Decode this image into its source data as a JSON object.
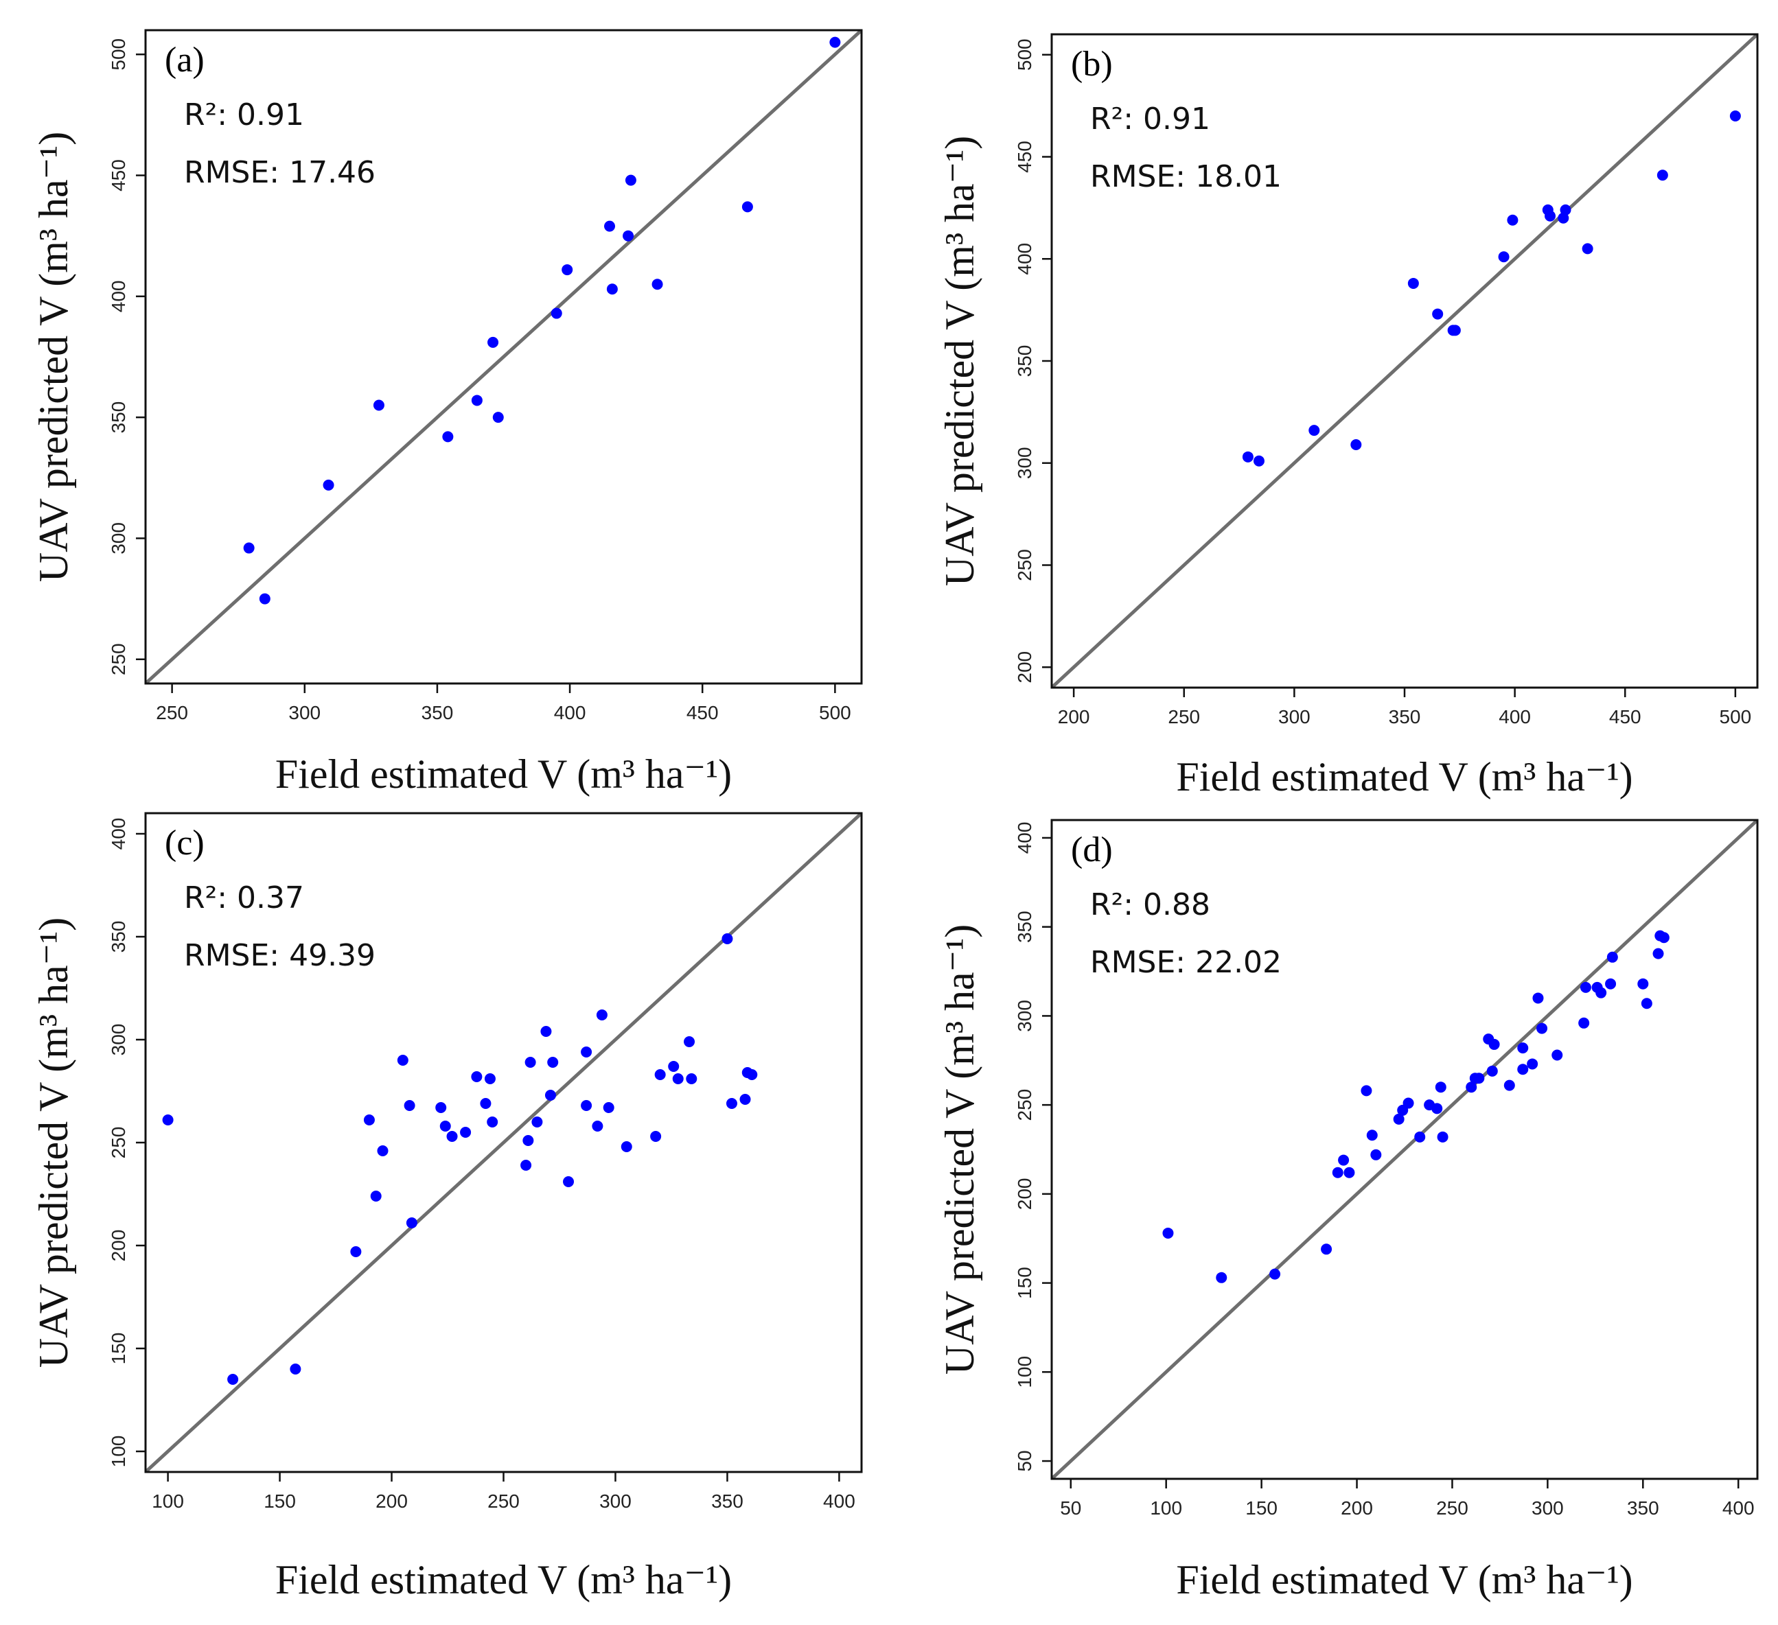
{
  "colors": {
    "points": "#0000ff",
    "reference_line": "#6e6e6e",
    "frame": "#111111"
  },
  "chart_data": [
    {
      "type": "scatter",
      "panel_label": "a",
      "xlabel": "Field estimated V (m³ ha⁻¹)",
      "ylabel": "UAV predicted V (m³ ha⁻¹)",
      "xlim": [
        240,
        510
      ],
      "ylim": [
        240,
        510
      ],
      "xticks": [
        250,
        300,
        350,
        400,
        450,
        500
      ],
      "yticks": [
        250,
        300,
        350,
        400,
        450,
        500
      ],
      "r2_label": "R²: 0.91",
      "rmse_label": "RMSE: 17.46",
      "reference_line": "1:1",
      "x": [
        279,
        285,
        309,
        328,
        354,
        365,
        371,
        373,
        395,
        399,
        415,
        416,
        422,
        423,
        433,
        467,
        500
      ],
      "y": [
        296,
        275,
        322,
        355,
        342,
        357,
        381,
        350,
        393,
        411,
        429,
        403,
        425,
        448,
        405,
        437,
        505
      ]
    },
    {
      "type": "scatter",
      "panel_label": "b",
      "xlabel": "Field estimated V (m³ ha⁻¹)",
      "ylabel": "UAV predicted V (m³ ha⁻¹)",
      "xlim": [
        190,
        510
      ],
      "ylim": [
        190,
        510
      ],
      "xticks": [
        200,
        250,
        300,
        350,
        400,
        450,
        500
      ],
      "yticks": [
        200,
        250,
        300,
        350,
        400,
        450,
        500
      ],
      "r2_label": "R²: 0.91",
      "rmse_label": "RMSE: 18.01",
      "reference_line": "1:1",
      "x": [
        279,
        284,
        309,
        328,
        354,
        365,
        372,
        373,
        395,
        399,
        415,
        416,
        422,
        423,
        433,
        467,
        500
      ],
      "y": [
        303,
        301,
        316,
        309,
        388,
        373,
        365,
        365,
        401,
        419,
        424,
        421,
        420,
        424,
        405,
        441,
        470
      ]
    },
    {
      "type": "scatter",
      "panel_label": "c",
      "xlabel": "Field estimated V (m³ ha⁻¹)",
      "ylabel": "UAV predicted V (m³ ha⁻¹)",
      "xlim": [
        90,
        410
      ],
      "ylim": [
        90,
        410
      ],
      "xticks": [
        100,
        150,
        200,
        250,
        300,
        350,
        400
      ],
      "yticks": [
        100,
        150,
        200,
        250,
        300,
        350,
        400
      ],
      "r2_label": "R²: 0.37",
      "rmse_label": "RMSE: 49.39",
      "reference_line": "1:1",
      "x": [
        100,
        129,
        157,
        184,
        190,
        193,
        196,
        205,
        208,
        209,
        222,
        224,
        227,
        233,
        238,
        242,
        244,
        245,
        260,
        261,
        262,
        265,
        269,
        271,
        272,
        279,
        287,
        287,
        292,
        294,
        297,
        305,
        318,
        320,
        326,
        328,
        333,
        334,
        350,
        352,
        358,
        359,
        361
      ],
      "y": [
        261,
        135,
        140,
        197,
        261,
        224,
        246,
        290,
        268,
        211,
        267,
        258,
        253,
        255,
        282,
        269,
        281,
        260,
        239,
        251,
        289,
        260,
        304,
        273,
        289,
        231,
        268,
        294,
        258,
        312,
        267,
        248,
        253,
        283,
        287,
        281,
        299,
        281,
        349,
        269,
        271,
        284,
        283
      ]
    },
    {
      "type": "scatter",
      "panel_label": "d",
      "xlabel": "Field estimated V (m³ ha⁻¹)",
      "ylabel": "UAV predicted V (m³ ha⁻¹)",
      "xlim": [
        40,
        410
      ],
      "ylim": [
        40,
        410
      ],
      "xticks": [
        50,
        100,
        150,
        200,
        250,
        300,
        350,
        400
      ],
      "yticks": [
        50,
        100,
        150,
        200,
        250,
        300,
        350,
        400
      ],
      "r2_label": "R²: 0.88",
      "rmse_label": "RMSE: 22.02",
      "reference_line": "1:1",
      "x": [
        101,
        129,
        157,
        184,
        190,
        193,
        196,
        205,
        208,
        210,
        222,
        224,
        227,
        233,
        238,
        242,
        244,
        245,
        260,
        262,
        264,
        269,
        271,
        272,
        280,
        287,
        287,
        292,
        295,
        297,
        305,
        319,
        320,
        326,
        328,
        333,
        334,
        350,
        352,
        358,
        359,
        361
      ],
      "y": [
        178,
        153,
        155,
        169,
        212,
        219,
        212,
        258,
        233,
        222,
        242,
        247,
        251,
        232,
        250,
        248,
        260,
        232,
        260,
        265,
        265,
        287,
        269,
        284,
        261,
        270,
        282,
        273,
        310,
        293,
        278,
        296,
        316,
        316,
        313,
        318,
        333,
        318,
        307,
        335,
        345,
        344
      ]
    }
  ]
}
